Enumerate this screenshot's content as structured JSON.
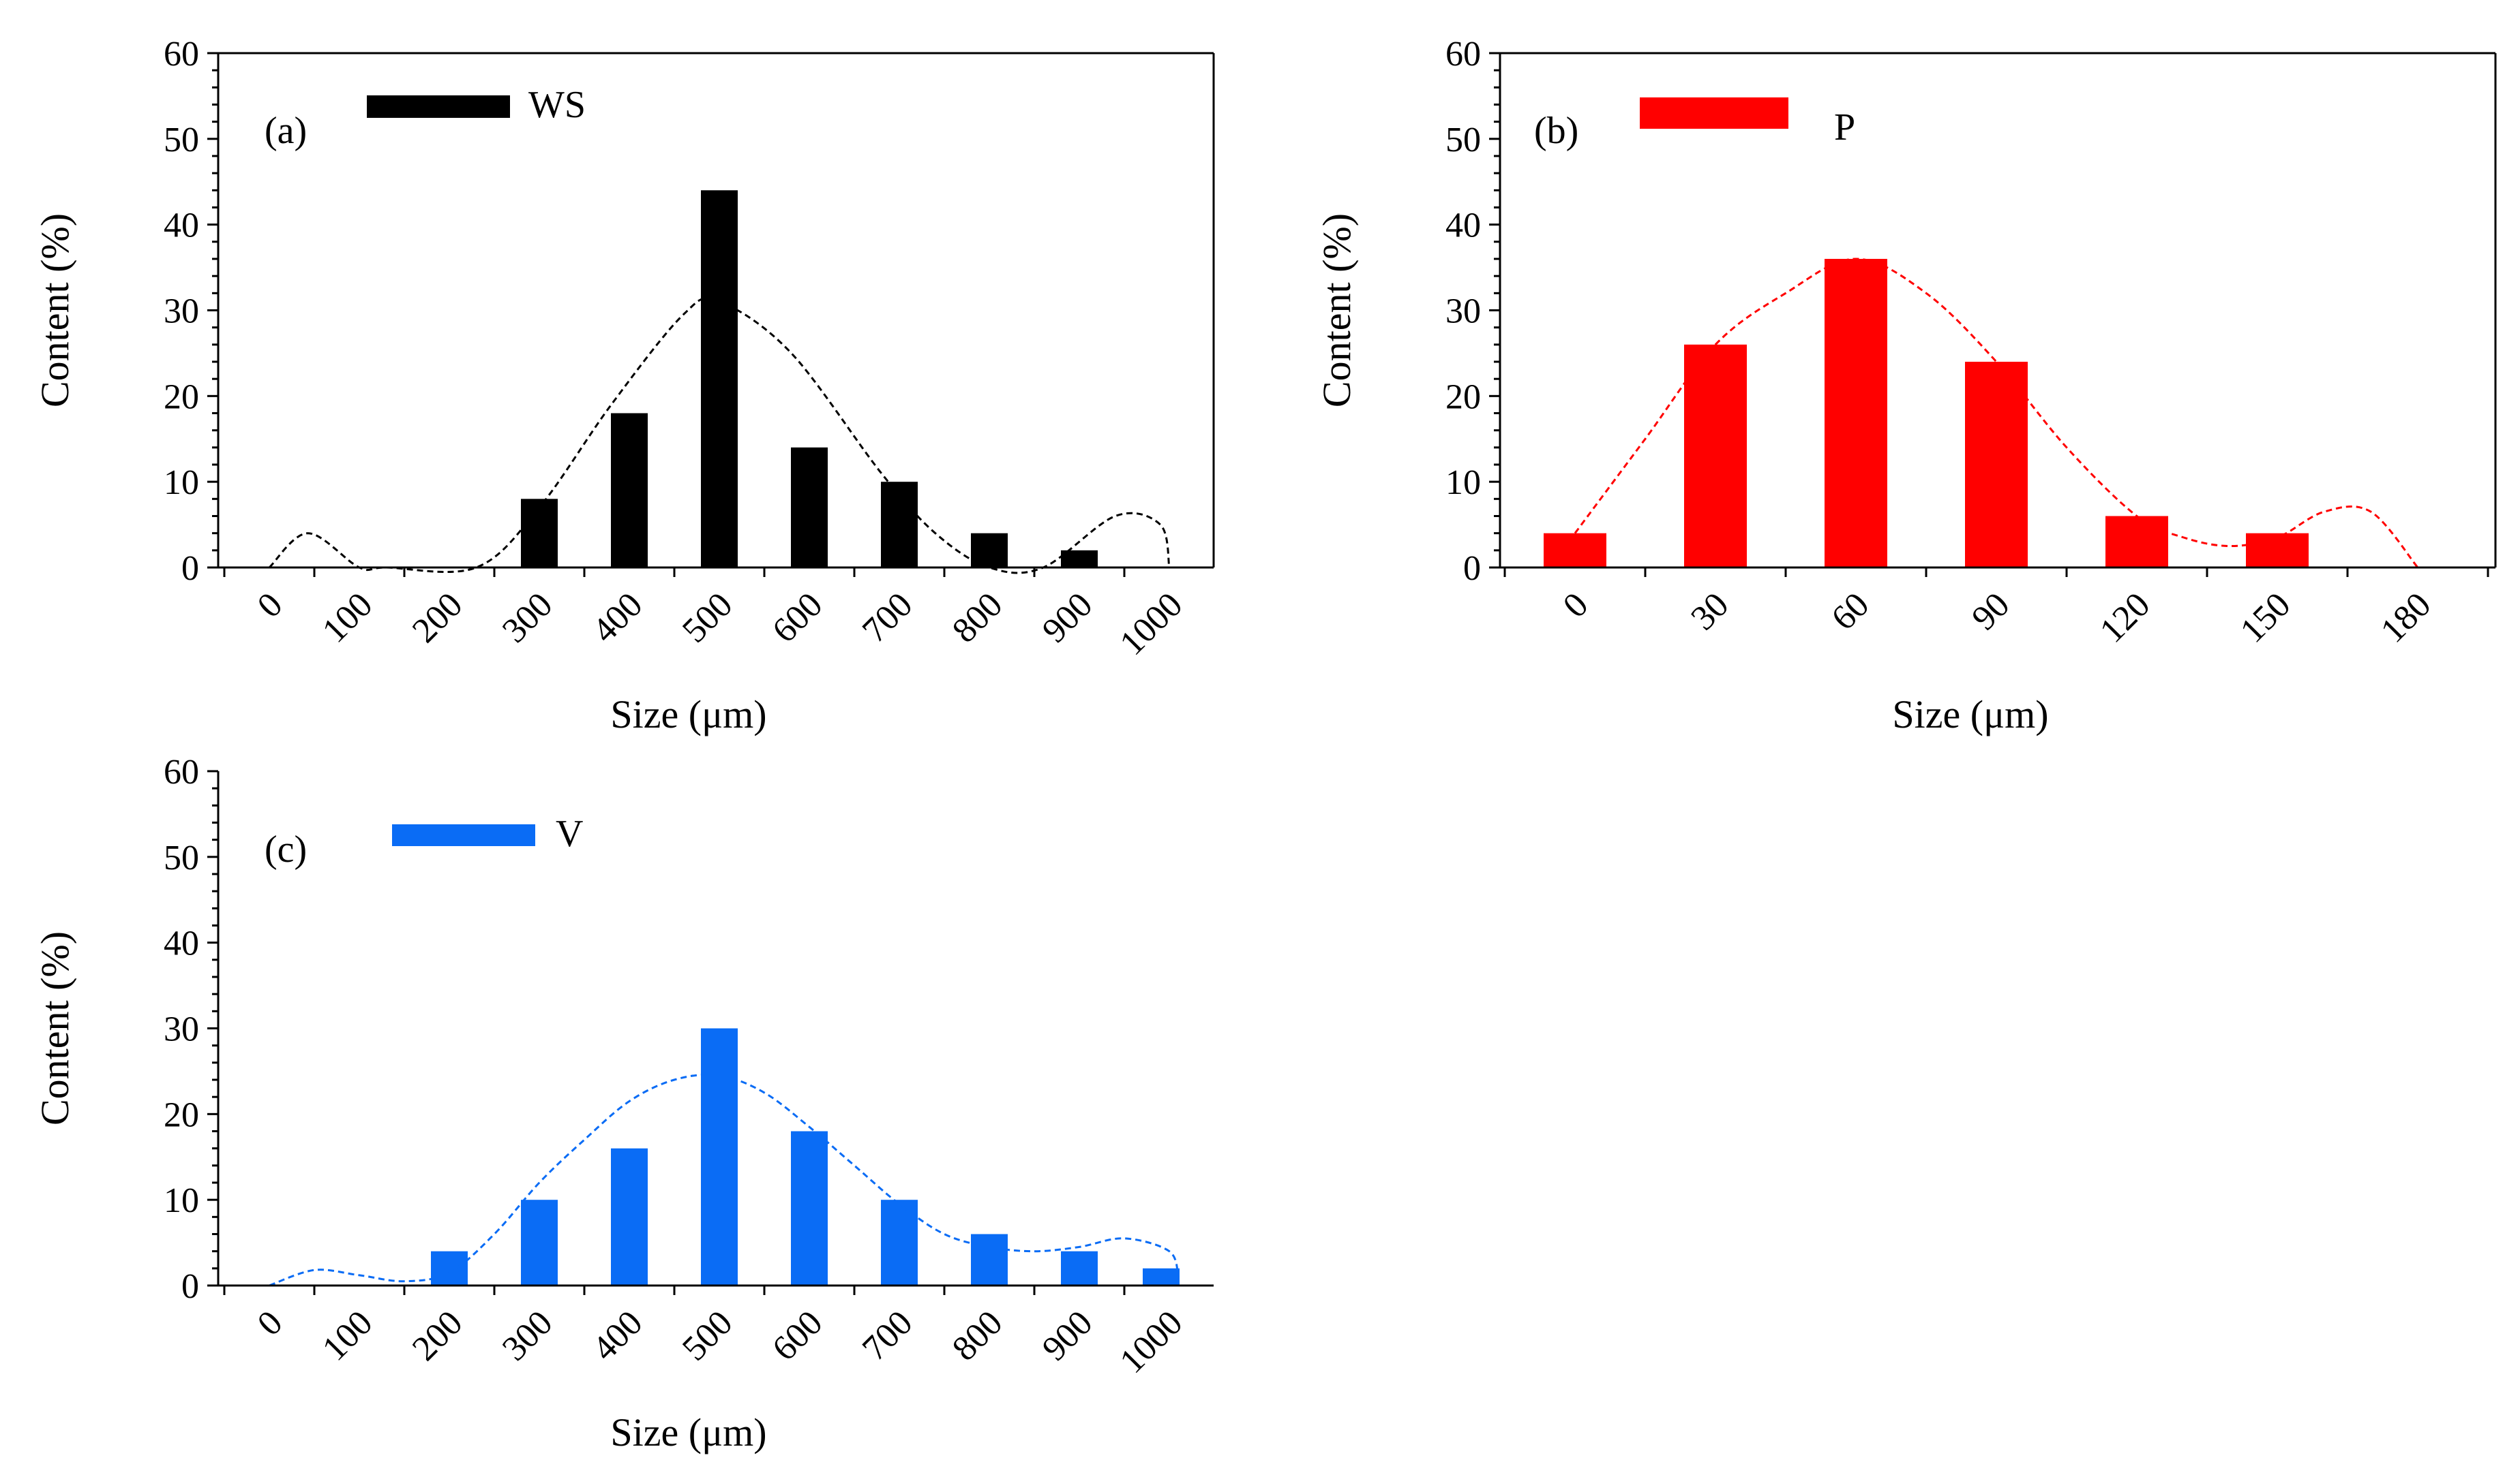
{
  "chart_data": [
    {
      "id": "a",
      "type": "bar",
      "panel_label": "(a)",
      "legend": "WS",
      "color": "#000000",
      "xlabel": "Size (μm)",
      "ylabel": "Content (%)",
      "ylim": [
        0,
        60
      ],
      "yticks": [
        "0",
        "10",
        "20",
        "30",
        "40",
        "50",
        "60"
      ],
      "categories": [
        "0",
        "100",
        "200",
        "300",
        "400",
        "500",
        "600",
        "700",
        "800",
        "900",
        "1000"
      ],
      "values": [
        0,
        0,
        0,
        8,
        18,
        44,
        14,
        10,
        4,
        2,
        0
      ],
      "fit_curve": {
        "style": "dashed",
        "x": [
          0,
          43,
          100,
          130,
          230,
          300,
          380,
          460,
          500,
          580,
          680,
          740,
          800,
          860,
          940,
          990,
          1000
        ],
        "y": [
          0,
          4,
          0,
          0,
          0,
          7,
          19,
          29.5,
          31,
          25,
          11,
          4,
          0,
          0,
          6,
          5,
          0
        ]
      }
    },
    {
      "id": "b",
      "type": "bar",
      "panel_label": "(b)",
      "legend": "P",
      "color": "#ff0000",
      "xlabel": "Size (μm)",
      "ylabel": "Content (%)",
      "ylim": [
        0,
        60
      ],
      "yticks": [
        "0",
        "10",
        "20",
        "30",
        "40",
        "50",
        "60"
      ],
      "categories": [
        "0",
        "30",
        "60",
        "90",
        "120",
        "150",
        "180"
      ],
      "values": [
        4,
        26,
        36,
        24,
        6,
        4,
        0
      ],
      "fit_curve": {
        "style": "dashed",
        "x": [
          0,
          15,
          30,
          45,
          60,
          75,
          90,
          105,
          120,
          130,
          140,
          150,
          160,
          170,
          180
        ],
        "y": [
          4,
          15,
          26,
          32,
          36,
          32,
          24,
          14,
          6,
          3.5,
          2.5,
          3.5,
          6.5,
          6.5,
          0
        ]
      }
    },
    {
      "id": "c",
      "type": "bar",
      "panel_label": "(c)",
      "legend": "V",
      "color": "#0a6cf5",
      "xlabel": "Size (μm)",
      "ylabel": "Content (%)",
      "ylim": [
        0,
        60
      ],
      "yticks": [
        "0",
        "10",
        "20",
        "30",
        "40",
        "50",
        "60"
      ],
      "categories": [
        "0",
        "100",
        "200",
        "300",
        "400",
        "500",
        "600",
        "700",
        "800",
        "900",
        "1000"
      ],
      "values": [
        0,
        0,
        4,
        10,
        16,
        30,
        18,
        10,
        6,
        4,
        2
      ],
      "fit_curve": {
        "style": "dashed",
        "x": [
          0,
          50,
          100,
          150,
          200,
          250,
          300,
          350,
          400,
          450,
          500,
          550,
          600,
          650,
          700,
          750,
          800,
          850,
          900,
          950,
          1000,
          1010
        ],
        "y": [
          0,
          1.8,
          1.2,
          0.5,
          1.5,
          6,
          12,
          17,
          21.5,
          24,
          24.5,
          22.5,
          18.5,
          14,
          9.5,
          6,
          4.5,
          4,
          4.5,
          5.5,
          4,
          1
        ]
      }
    }
  ]
}
